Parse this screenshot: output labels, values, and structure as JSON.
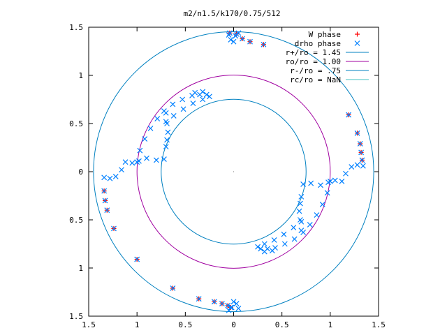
{
  "chart_data": {
    "type": "scatter",
    "title": "m2/n1.5/k170/0.75/512",
    "xlabel": "",
    "ylabel": "",
    "xlim": [
      -1.5,
      1.5
    ],
    "ylim": [
      -1.5,
      1.5
    ],
    "x_ticks": [
      -1.5,
      -1,
      -0.5,
      0,
      0.5,
      1,
      1.5
    ],
    "x_tick_labels": [
      "1.5",
      "1",
      "0.5",
      "0",
      "0.5",
      "1",
      "1.5"
    ],
    "y_ticks": [
      1.5,
      1,
      0.5,
      0,
      -0.5,
      -1,
      -1.5
    ],
    "y_tick_labels": [
      "1.5",
      "1",
      "0.5",
      "0",
      "0.5",
      "1",
      "1.5"
    ],
    "grid": false,
    "legend_position": "top-right",
    "series": [
      {
        "name": "W phase",
        "kind": "points",
        "marker": "+",
        "color": "#ff0000",
        "points": [
          [
            -0.04,
            1.44
          ],
          [
            0.03,
            1.43
          ],
          [
            0.09,
            1.38
          ],
          [
            0.17,
            1.35
          ],
          [
            0.31,
            1.32
          ],
          [
            1.19,
            0.59
          ],
          [
            1.28,
            0.4
          ],
          [
            1.31,
            0.29
          ],
          [
            1.32,
            0.2
          ],
          [
            1.33,
            0.12
          ],
          [
            -1.34,
            -0.2
          ],
          [
            -1.33,
            -0.3
          ],
          [
            -1.31,
            -0.4
          ],
          [
            -1.24,
            -0.59
          ],
          [
            -1.0,
            -0.91
          ],
          [
            -0.63,
            -1.21
          ],
          [
            -0.36,
            -1.32
          ],
          [
            -0.2,
            -1.35
          ],
          [
            -0.12,
            -1.37
          ],
          [
            -0.06,
            -1.39
          ],
          [
            -0.03,
            -1.41
          ]
        ]
      },
      {
        "name": "drho phase",
        "kind": "points",
        "marker": "x",
        "color": "#0080ff",
        "points": [
          [
            -0.04,
            1.44
          ],
          [
            0.03,
            1.43
          ],
          [
            0.09,
            1.38
          ],
          [
            0.17,
            1.35
          ],
          [
            0.31,
            1.32
          ],
          [
            1.19,
            0.59
          ],
          [
            1.28,
            0.4
          ],
          [
            1.31,
            0.29
          ],
          [
            1.32,
            0.2
          ],
          [
            1.33,
            0.12
          ],
          [
            -1.34,
            -0.2
          ],
          [
            -1.33,
            -0.3
          ],
          [
            -1.31,
            -0.4
          ],
          [
            -1.24,
            -0.59
          ],
          [
            -1.0,
            -0.91
          ],
          [
            -0.63,
            -1.21
          ],
          [
            -0.36,
            -1.32
          ],
          [
            -0.2,
            -1.35
          ],
          [
            -0.12,
            -1.37
          ],
          [
            -0.06,
            -1.39
          ],
          [
            -0.03,
            -1.41
          ],
          [
            -1.34,
            -0.06
          ],
          [
            -1.28,
            -0.07
          ],
          [
            -1.22,
            -0.05
          ],
          [
            -1.16,
            0.02
          ],
          [
            -1.12,
            0.1
          ],
          [
            -1.05,
            0.09
          ],
          [
            -0.98,
            0.11
          ],
          [
            -0.9,
            0.14
          ],
          [
            -0.8,
            0.12
          ],
          [
            -0.72,
            0.13
          ],
          [
            -0.7,
            0.26
          ],
          [
            -0.69,
            0.33
          ],
          [
            -0.68,
            0.41
          ],
          [
            -0.69,
            0.5
          ],
          [
            -0.7,
            0.61
          ],
          [
            -1.0,
            0.1
          ],
          [
            -0.97,
            0.22
          ],
          [
            -0.92,
            0.34
          ],
          [
            -0.86,
            0.45
          ],
          [
            -0.79,
            0.55
          ],
          [
            -0.72,
            0.63
          ],
          [
            -0.63,
            0.7
          ],
          [
            -0.53,
            0.75
          ],
          [
            -0.43,
            0.79
          ],
          [
            -0.35,
            0.8
          ],
          [
            -0.7,
            0.52
          ],
          [
            -0.62,
            0.58
          ],
          [
            -0.52,
            0.65
          ],
          [
            -0.42,
            0.71
          ],
          [
            -0.32,
            0.75
          ],
          [
            -0.25,
            0.78
          ],
          [
            -0.4,
            0.82
          ],
          [
            -0.32,
            0.83
          ],
          [
            -0.28,
            0.8
          ],
          [
            1.34,
            0.06
          ],
          [
            1.28,
            0.07
          ],
          [
            1.22,
            0.05
          ],
          [
            1.16,
            -0.02
          ],
          [
            1.12,
            -0.1
          ],
          [
            1.05,
            -0.09
          ],
          [
            0.98,
            -0.11
          ],
          [
            0.9,
            -0.14
          ],
          [
            0.8,
            -0.12
          ],
          [
            0.72,
            -0.13
          ],
          [
            0.7,
            -0.26
          ],
          [
            0.69,
            -0.33
          ],
          [
            0.68,
            -0.41
          ],
          [
            0.69,
            -0.5
          ],
          [
            0.7,
            -0.61
          ],
          [
            1.0,
            -0.1
          ],
          [
            0.97,
            -0.22
          ],
          [
            0.92,
            -0.34
          ],
          [
            0.86,
            -0.45
          ],
          [
            0.79,
            -0.55
          ],
          [
            0.72,
            -0.63
          ],
          [
            0.63,
            -0.7
          ],
          [
            0.53,
            -0.75
          ],
          [
            0.43,
            -0.79
          ],
          [
            0.35,
            -0.8
          ],
          [
            0.7,
            -0.52
          ],
          [
            0.62,
            -0.58
          ],
          [
            0.52,
            -0.65
          ],
          [
            0.42,
            -0.71
          ],
          [
            0.32,
            -0.75
          ],
          [
            0.25,
            -0.78
          ],
          [
            0.4,
            -0.82
          ],
          [
            0.32,
            -0.83
          ],
          [
            0.28,
            -0.8
          ],
          [
            -0.05,
            1.42
          ],
          [
            0.02,
            1.41
          ],
          [
            0.05,
            1.44
          ],
          [
            -0.03,
            1.37
          ],
          [
            0.0,
            1.35
          ],
          [
            0.05,
            -1.42
          ],
          [
            -0.02,
            -1.41
          ],
          [
            -0.05,
            -1.44
          ],
          [
            0.03,
            -1.37
          ],
          [
            0.0,
            -1.35
          ]
        ]
      },
      {
        "name": "r+/ro = 1.45",
        "kind": "circle",
        "radius": 1.45,
        "color": "#0080c0"
      },
      {
        "name": "ro/ro = 1.00",
        "kind": "circle",
        "radius": 1.0,
        "color": "#a000a0"
      },
      {
        "name": "r-/ro = .75",
        "kind": "circle",
        "radius": 0.75,
        "color": "#0080c0"
      },
      {
        "name": "rc/ro = NaN",
        "kind": "circle",
        "radius": null,
        "color": "#40c0c0"
      }
    ]
  }
}
